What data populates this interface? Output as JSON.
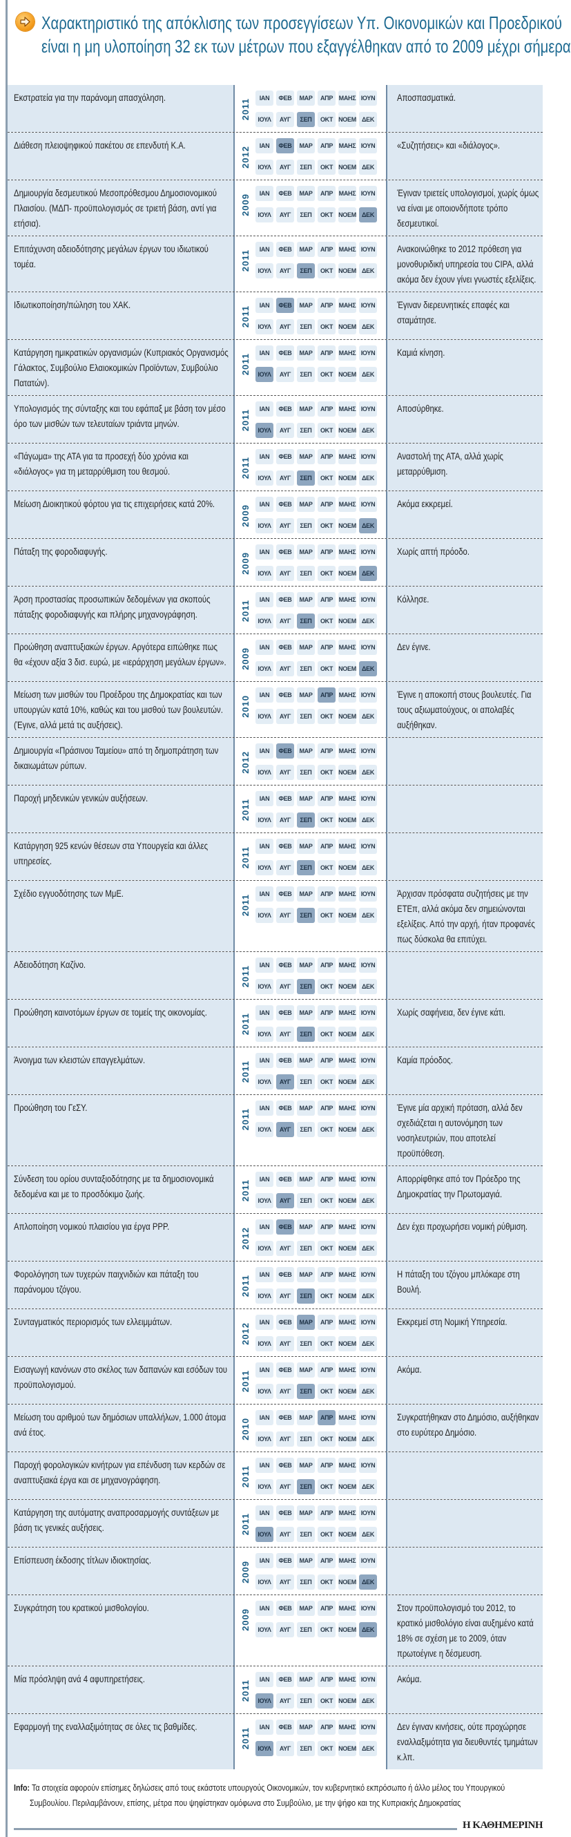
{
  "title": {
    "line1": "Χαρακτηριστικό της απόκλισης των προσεγγίσεων Υπ. Οικονομικών και Προεδρικού",
    "line2": "είναι η μη υλοποίηση 32 εκ των μέτρων που εξαγγέλθηκαν από το 2009 μέχρι σήμερα"
  },
  "icon": "arrow-right-circle-icon",
  "colors": {
    "title": "#1e6a91",
    "row_bg": "#dde8f2",
    "month_bg": "#e3edf5",
    "month_highlight": "#8ea6bf",
    "year": "#1d5f86"
  },
  "months": [
    "ΙΑΝ",
    "ΦΕΒ",
    "ΜΑΡ",
    "ΑΠΡ",
    "ΜΑΗΣ",
    "ΙΟΥΝ",
    "ΙΟΥΛ",
    "ΑΥΓ",
    "ΣΕΠ",
    "ΟΚΤ",
    "ΝΟΕΜ",
    "ΔΕΚ"
  ],
  "rows": [
    {
      "measure": "Εκστρατεία για την παράνομη απασχόληση.",
      "year": "2011",
      "month": "ΣΕΠ",
      "status": "Αποσπασματικά."
    },
    {
      "measure": "Διάθεση πλειοψηφικού πακέτου σε επενδυτή Κ.Α.",
      "year": "2012",
      "month": "ΦΕΒ",
      "status": "«Συζητήσεις» και «διάλογος»."
    },
    {
      "measure": "Δημιουργία δεσμευτικού Μεσοπρόθεσμου Δημοσιονομικού Πλαισίου. (ΜΔΠ- προϋπολογισμός σε τριετή βάση, αντί για ετήσια).",
      "year": "2009",
      "month": "ΔΕΚ",
      "status": "Έγιναν τριετείς υπολογισμοί, χωρίς όμως να είναι με οποιονδήποτε τρόπο δεσμευτικοί."
    },
    {
      "measure": "Επιτάχυνση αδειοδότησης μεγάλων έργων του ιδιωτικού τομέα.",
      "year": "2011",
      "month": "ΣΕΠ",
      "status": "Ανακοινώθηκε το 2012 πρόθεση για μονοθυριδική υπηρεσία του CIPA, αλλά ακόμα δεν έχουν γίνει γνωστές εξελίξεις."
    },
    {
      "measure": "Ιδιωτικοποίηση/πώληση του ΧΑΚ.",
      "year": "2011",
      "month": "ΦΕΒ",
      "status": "Έγιναν διερευνητικές επαφές και σταμάτησε."
    },
    {
      "measure": "Κατάργηση ημικρατικών οργανισμών (Κυπριακός Οργανισμός Γάλακτος, Συμβούλιο Ελαιοκομικών Προϊόντων, Συμβούλιο Πατατών).",
      "year": "2011",
      "month": "ΙΟΥΛ",
      "status": "Καμιά κίνηση."
    },
    {
      "measure": "Υπολογισμός της σύνταξης και του εφάπαξ με βάση τον μέσο όρο των μισθών των τελευταίων τριάντα μηνών.",
      "year": "2011",
      "month": "ΙΟΥΛ",
      "status": "Αποσύρθηκε."
    },
    {
      "measure": "«Πάγωμα» της ΑΤΑ για τα προσεχή δύο χρόνια και «διάλογος» για τη μεταρρύθμιση του θεσμού.",
      "year": "2011",
      "month": "ΣΕΠ",
      "status": "Αναστολή της ΑΤΑ, αλλά χωρίς μεταρρύθμιση."
    },
    {
      "measure": "Μείωση Διοικητικού φόρτου για τις επιχειρήσεις κατά 20%.",
      "year": "2009",
      "month": "ΔΕΚ",
      "status": "Ακόμα εκκρεμεί."
    },
    {
      "measure": "Πάταξη της φοροδιαφυγής.",
      "year": "2009",
      "month": "ΔΕΚ",
      "status": "Χωρίς απτή πρόοδο."
    },
    {
      "measure": "Άρση προστασίας προσωπικών δεδομένων για σκοπούς πάταξης φοροδιαφυγής και πλήρης μηχανογράφηση.",
      "year": "2011",
      "month": "ΣΕΠ",
      "status": "Κόλλησε."
    },
    {
      "measure": "Προώθηση αναπτυξιακών έργων. Αργότερα ειπώθηκε πως θα «έχουν αξία 3 δισ. ευρώ, με «ιεράρχηση μεγάλων έργων».",
      "year": "2009",
      "month": "ΔΕΚ",
      "status": "Δεν έγινε."
    },
    {
      "measure": "Μείωση των μισθών του Προέδρου της Δημοκρατίας και των υπουργών κατά 10%, καθώς και του μισθού των βουλευτών. (Έγινε, αλλά μετά τις αυξήσεις).",
      "year": "2010",
      "month": "ΑΠΡ",
      "status": "Έγινε η αποκοπή στους βουλευτές. Για τους αξιωματούχους, οι απολαβές αυξήθηκαν."
    },
    {
      "measure": "Δημιουργία «Πράσινου Ταμείου» από τη δημοπράτηση των δικαιωμάτων ρύπων.",
      "year": "2012",
      "month": "ΦΕΒ",
      "status": ""
    },
    {
      "measure": "Παροχή μηδενικών γενικών αυξήσεων.",
      "year": "2011",
      "month": "ΣΕΠ",
      "status": ""
    },
    {
      "measure": "Κατάργηση 925 κενών θέσεων στα Υπουργεία και άλλες υπηρεσίες.",
      "year": "2011",
      "month": "ΣΕΠ",
      "status": ""
    },
    {
      "measure": "Σχέδιο εγγυοδότησης των ΜμΕ.",
      "year": "2011",
      "month": "ΣΕΠ",
      "status": "Άρχισαν πρόσφατα συζητήσεις με την ΕΤΕπ, αλλά ακόμα δεν σημειώνονται εξελίξεις. Από την αρχή, ήταν προφανές πως δύσκολα θα επιτύχει."
    },
    {
      "measure": "Αδειοδότηση Καζίνο.",
      "year": "2011",
      "month": "ΣΕΠ",
      "status": ""
    },
    {
      "measure": "Προώθηση καινοτόμων έργων σε τομείς της οικονομίας.",
      "year": "2011",
      "month": "ΣΕΠ",
      "status": "Χωρίς σαφήνεια, δεν έγινε κάτι."
    },
    {
      "measure": "Άνοιγμα των κλειστών επαγγελμάτων.",
      "year": "2011",
      "month": "ΑΥΓ",
      "status": "Καμία πρόοδος."
    },
    {
      "measure": "Προώθηση του ΓεΣΥ.",
      "year": "2011",
      "month": "ΑΥΓ",
      "status": "Έγινε μία αρχική πρόταση, αλλά δεν σχεδιάζεται η αυτονόμηση των νοσηλευτριών, που αποτελεί προϋπόθεση."
    },
    {
      "measure": "Σύνδεση του ορίου συνταξιοδότησης με τα δημοσιονομικά δεδομένα και με το προσδόκιμο ζωής.",
      "year": "2011",
      "month": "ΑΥΓ",
      "status": "Απορρίφθηκε από τον Πρόεδρο της Δημοκρατίας την Πρωτομαγιά."
    },
    {
      "measure": "Απλοποίηση νομικού πλαισίου για έργα PPP.",
      "year": "2012",
      "month": "ΦΕΒ",
      "status": "Δεν έχει προχωρήσει νομική ρύθμιση."
    },
    {
      "measure": "Φορολόγηση των τυχερών παιχνιδιών και πάταξη του παράνομου τζόγου.",
      "year": "2011",
      "month": "ΣΕΠ",
      "status": "Η πάταξη του τζόγου μπλόκαρε στη Βουλή."
    },
    {
      "measure": "Συνταγματικός περιορισμός των ελλειμμάτων.",
      "year": "2012",
      "month": "ΜΑΡ",
      "status": "Εκκρεμεί στη Νομική Υπηρεσία."
    },
    {
      "measure": "Εισαγωγή κανόνων στο σκέλος των δαπανών και εσόδων του προϋπολογισμού.",
      "year": "2011",
      "month": "ΣΕΠ",
      "status": "Ακόμα."
    },
    {
      "measure": "Μείωση του αριθμού των δημόσιων υπαλλήλων, 1.000 άτομα ανά έτος.",
      "year": "2010",
      "month": "ΑΠΡ",
      "status": "Συγκρατήθηκαν στο Δημόσιο, αυξήθηκαν στο ευρύτερο Δημόσιο."
    },
    {
      "measure": "Παροχή φορολογικών κινήτρων για επένδυση των κερδών σε αναπτυξιακά έργα και σε μηχανογράφηση.",
      "year": "2011",
      "month": "ΣΕΠ",
      "status": ""
    },
    {
      "measure": "Κατάργηση της αυτόματης αναπροσαρμογής συντάξεων με βάση τις γενικές αυξήσεις.",
      "year": "2011",
      "month": "ΙΟΥΛ",
      "status": ""
    },
    {
      "measure": "Επίσπευση έκδοσης τίτλων ιδιοκτησίας.",
      "year": "2009",
      "month": "ΔΕΚ",
      "status": ""
    },
    {
      "measure": "Συγκράτηση του κρατικού μισθολογίου.",
      "year": "2009",
      "month": "ΔΕΚ",
      "status": "Στον προϋπολογισμό του 2012, το κρατικό μισθολόγιο είναι αυξημένο κατά 18% σε σχέση με το 2009, όταν πρωτοέγινε η δέσμευση."
    },
    {
      "measure": "Μία πρόσληψη ανά 4 αφυπηρετήσεις.",
      "year": "2011",
      "month": "ΙΟΥΛ",
      "status": "Ακόμα."
    },
    {
      "measure": "Εφαρμογή της εναλλαξιμότητας σε όλες τις βαθμίδες.",
      "year": "2011",
      "month": "ΙΟΥΛ",
      "status": "Δεν έγιναν κινήσεις, ούτε προχώρησε εναλλαξιμότητα για διευθυντές τμημάτων κ.λπ."
    }
  ],
  "info": {
    "label": "Info:",
    "line1": "Τα στοιχεία αφορούν επίσημες δηλώσεις από τους εκάστοτε υπουργούς Οικονομικών, τον κυβερνητικό εκπρόσωπο ή άλλο μέλος του Υπουργικού",
    "line2": "Συμβουλίου. Περιλαμβάνουν, επίσης, μέτρα που ψηφίστηκαν ομόφωνα στο Συμβούλιο, με την ψήφο και της Κυπριακής Δημοκρατίας"
  },
  "brand": "Η ΚΑΘΗΜΕΡΙΝΗ"
}
